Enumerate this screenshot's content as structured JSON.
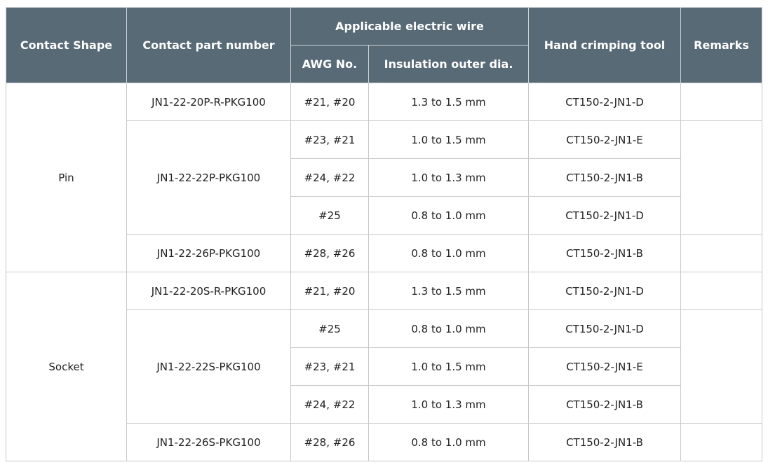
{
  "header": {
    "contact_shape": "Contact Shape",
    "contact_part_number": "Contact part number",
    "applicable_wire": "Applicable electric wire",
    "awg": "AWG No.",
    "insulation": "Insulation outer dia.",
    "tool": "Hand crimping tool",
    "remarks": "Remarks"
  },
  "colors": {
    "header_bg": "#586a76",
    "border": "#c8c8c8"
  },
  "groups": [
    {
      "shape": "Pin",
      "parts": [
        {
          "part": "JN1-22-20P-R-PKG100",
          "rows": [
            {
              "awg": "#21, #20",
              "dia": "1.3 to 1.5 mm",
              "tool": "CT150-2-JN1-D"
            }
          ]
        },
        {
          "part": "JN1-22-22P-PKG100",
          "rows": [
            {
              "awg": "#23, #21",
              "dia": "1.0 to 1.5 mm",
              "tool": "CT150-2-JN1-E"
            },
            {
              "awg": "#24, #22",
              "dia": "1.0 to 1.3 mm",
              "tool": "CT150-2-JN1-B"
            },
            {
              "awg": "#25",
              "dia": "0.8 to 1.0 mm",
              "tool": "CT150-2-JN1-D"
            }
          ]
        },
        {
          "part": "JN1-22-26P-PKG100",
          "rows": [
            {
              "awg": "#28, #26",
              "dia": "0.8 to 1.0 mm",
              "tool": "CT150-2-JN1-B"
            }
          ]
        }
      ]
    },
    {
      "shape": "Socket",
      "parts": [
        {
          "part": "JN1-22-20S-R-PKG100",
          "rows": [
            {
              "awg": "#21, #20",
              "dia": "1.3 to 1.5 mm",
              "tool": "CT150-2-JN1-D"
            }
          ]
        },
        {
          "part": "JN1-22-22S-PKG100",
          "rows": [
            {
              "awg": "#25",
              "dia": "0.8 to 1.0 mm",
              "tool": "CT150-2-JN1-D"
            },
            {
              "awg": "#23, #21",
              "dia": "1.0 to 1.5 mm",
              "tool": "CT150-2-JN1-E"
            },
            {
              "awg": "#24, #22",
              "dia": "1.0 to 1.3 mm",
              "tool": "CT150-2-JN1-B"
            }
          ]
        },
        {
          "part": "JN1-22-26S-PKG100",
          "rows": [
            {
              "awg": "#28, #26",
              "dia": "0.8 to 1.0 mm",
              "tool": "CT150-2-JN1-B"
            }
          ]
        }
      ]
    }
  ]
}
